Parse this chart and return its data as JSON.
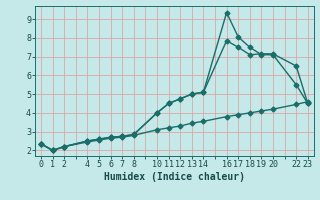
{
  "xlabel": "Humidex (Indice chaleur)",
  "bg_color": "#c5e8e8",
  "grid_color": "#dba8a8",
  "line_color": "#1a6e6a",
  "xtick_labels": [
    "0",
    "1",
    "2",
    "",
    "4",
    "5",
    "6",
    "7",
    "8",
    "",
    "10",
    "11",
    "12",
    "13",
    "14",
    "",
    "16",
    "17",
    "18",
    "19",
    "20",
    "",
    "22",
    "23"
  ],
  "xtick_positions": [
    0,
    1,
    2,
    3,
    4,
    5,
    6,
    7,
    8,
    9,
    10,
    11,
    12,
    13,
    14,
    15,
    16,
    17,
    18,
    19,
    20,
    21,
    22,
    23
  ],
  "ylim": [
    1.7,
    9.7
  ],
  "xlim": [
    -0.5,
    23.5
  ],
  "series": [
    {
      "x": [
        0,
        1,
        2,
        4,
        5,
        6,
        7,
        8,
        10,
        11,
        12,
        13,
        14,
        16,
        17,
        18,
        19,
        20,
        22,
        23
      ],
      "y": [
        2.35,
        2.0,
        2.2,
        2.5,
        2.6,
        2.7,
        2.75,
        2.85,
        4.0,
        4.5,
        4.75,
        5.0,
        5.1,
        9.35,
        8.05,
        7.5,
        7.1,
        7.1,
        5.5,
        4.5
      ],
      "marker": "D",
      "markersize": 2.5,
      "lw": 1.0
    },
    {
      "x": [
        0,
        1,
        2,
        4,
        5,
        6,
        7,
        8,
        10,
        11,
        12,
        13,
        14,
        16,
        17,
        18,
        19,
        20,
        22,
        23
      ],
      "y": [
        2.35,
        2.0,
        2.2,
        2.5,
        2.6,
        2.7,
        2.75,
        2.85,
        4.0,
        4.5,
        4.75,
        5.0,
        5.1,
        7.85,
        7.5,
        7.1,
        7.15,
        7.15,
        6.5,
        4.5
      ],
      "marker": "D",
      "markersize": 2.5,
      "lw": 1.0
    },
    {
      "x": [
        0,
        1,
        2,
        4,
        5,
        6,
        7,
        8,
        10,
        11,
        12,
        13,
        14,
        16,
        17,
        18,
        19,
        20,
        22,
        23
      ],
      "y": [
        2.35,
        2.0,
        2.2,
        2.45,
        2.55,
        2.65,
        2.7,
        2.8,
        3.1,
        3.2,
        3.3,
        3.45,
        3.55,
        3.8,
        3.9,
        4.0,
        4.1,
        4.2,
        4.45,
        4.6
      ],
      "marker": "D",
      "markersize": 2.5,
      "lw": 1.0
    }
  ],
  "yticks": [
    2,
    3,
    4,
    5,
    6,
    7,
    8,
    9
  ],
  "tick_fontsize": 6.0,
  "xlabel_fontsize": 7.0
}
